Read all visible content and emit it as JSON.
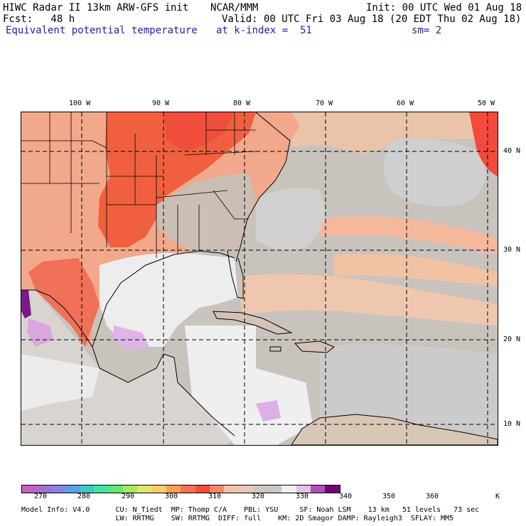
{
  "header": {
    "line1_left": "HIWC Radar II 13km ARW-GFS init",
    "line1_mid": "NCAR/MMM",
    "line1_right": "Init: 00 UTC Wed 01 Aug 18",
    "line2_left": "Fcst:   48 h",
    "line2_right": "Valid: 00 UTC Fri 03 Aug 18 (20 EDT Thu 02 Aug 18)",
    "line3_left": "Equivalent potential temperature",
    "line3_mid": "at k-index =  51",
    "line3_right": "sm= 2"
  },
  "map": {
    "lon_labels": [
      "100 W",
      "90 W",
      "80 W",
      "70 W",
      "60 W",
      "50 W"
    ],
    "lat_labels": [
      "40 N",
      "30 N",
      "20 N",
      "10 N"
    ]
  },
  "legend": {
    "colors": [
      "#c661c6",
      "#a270d0",
      "#8b82e8",
      "#5aa0e8",
      "#3ac8c8",
      "#3ee8a0",
      "#62e870",
      "#a8e862",
      "#dfe860",
      "#f8cc68",
      "#f8a058",
      "#f87058",
      "#f84a40",
      "#f88868",
      "#f8c0a8",
      "#e8c8b8",
      "#d0c8c0",
      "#c8c8c8",
      "#f0f0f0",
      "#e0c0e8",
      "#b050b8",
      "#780078"
    ],
    "ticks": [
      "270",
      "280",
      "290",
      "300",
      "310",
      "320",
      "330",
      "340",
      "350",
      "360"
    ],
    "unit": "K"
  },
  "footer": {
    "line1": "Model Info: V4.0      CU: N_Tiedt  MP: Thomp C/A    PBL: YSU     SF: Noah LSM    13 km   51 levels   73 sec",
    "line2": "                      LW: RRTMG    SW: RRTMG  DIFF: full    KM: 2D Smagor DAMP: Rayleigh3  SFLAY: MM5"
  }
}
